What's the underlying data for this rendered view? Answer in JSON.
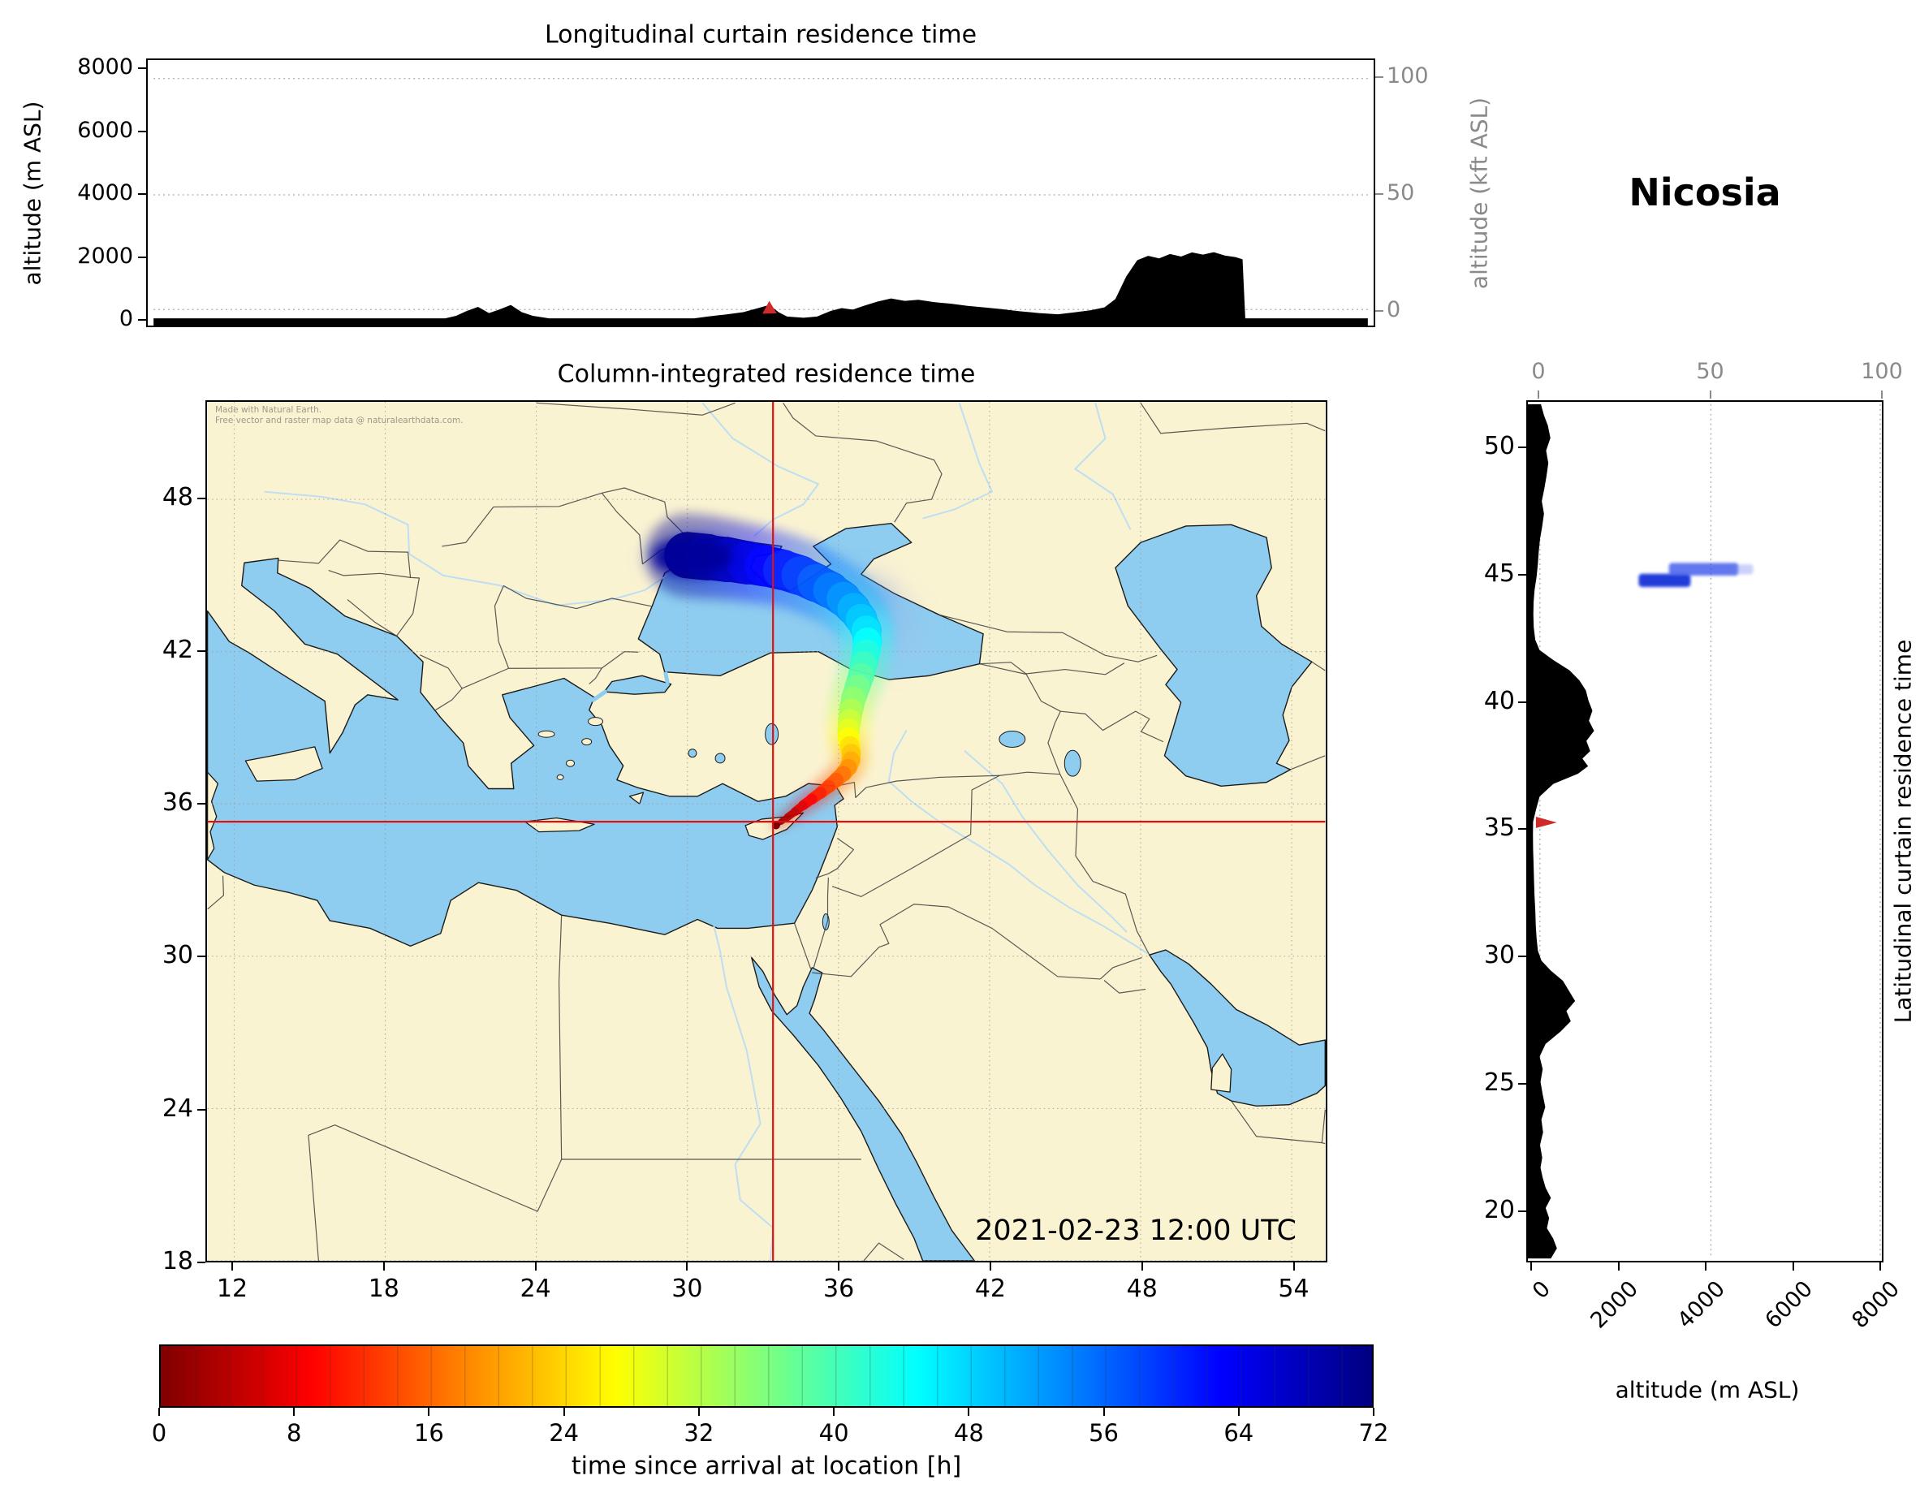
{
  "title": "Nicosia",
  "top_panel": {
    "title": "Longitudinal curtain residence time",
    "ylabel_left": "altitude (m ASL)",
    "ylabel_right": "altitude (kft ASL)",
    "yticks_left": [
      0,
      2000,
      4000,
      6000,
      8000
    ],
    "yticks_right": [
      0,
      50,
      100
    ],
    "ylim_m": [
      0,
      8000
    ],
    "ylim_kft": [
      0,
      100
    ]
  },
  "map_panel": {
    "title": "Column-integrated residence time",
    "datetime_label": "2021-02-23 12:00 UTC",
    "attribution_line1": "Made with Natural Earth.",
    "attribution_line2": "Free vector and raster map data @ naturalearthdata.com.",
    "xticks": [
      12,
      18,
      24,
      30,
      36,
      42,
      48,
      54
    ],
    "yticks": [
      18,
      24,
      30,
      36,
      42,
      48
    ],
    "lon_range": [
      10.94,
      55.33
    ],
    "lat_range": [
      18,
      51.84
    ],
    "crosshair_lon": 33.4,
    "crosshair_lat": 35.3
  },
  "right_panel": {
    "xlabel": "altitude (m ASL)",
    "ylabel": "Latitudinal curtain residence time",
    "xticks": [
      0,
      2000,
      4000,
      6000,
      8000
    ],
    "xticks_top": [
      0,
      50,
      100
    ],
    "yticks": [
      20,
      25,
      30,
      35,
      40,
      45,
      50
    ],
    "xlim_m": [
      0,
      8000
    ]
  },
  "colorbar": {
    "label": "time since arrival at location [h]",
    "ticks": [
      0,
      8,
      16,
      24,
      32,
      40,
      48,
      56,
      64,
      72
    ],
    "range": [
      0,
      72
    ],
    "n_levels": 36,
    "stops": [
      [
        0,
        "#7f0000"
      ],
      [
        0.125,
        "#ff0000"
      ],
      [
        0.25,
        "#ff8400"
      ],
      [
        0.375,
        "#ffff00"
      ],
      [
        0.5,
        "#7dff7d"
      ],
      [
        0.625,
        "#00ffff"
      ],
      [
        0.75,
        "#0084ff"
      ],
      [
        0.875,
        "#0000ff"
      ],
      [
        1,
        "#00007f"
      ]
    ]
  },
  "colors": {
    "land": "#faf3d2",
    "ocean": "#8ecdf0",
    "coast": "#1a1a1a",
    "border": "#3c3c3c",
    "river": "#b9ddf2",
    "terrain": "#000000",
    "grid": "#999999",
    "axis_gray": "#8a8a8a",
    "crosshair": "#e01010",
    "marker": "#cf2b2b"
  },
  "chart_data": [
    {
      "type": "area",
      "name": "longitudinal_terrain_profile",
      "title": "Longitudinal curtain residence time",
      "xlim": [
        10.94,
        55.33
      ],
      "ylim": [
        0,
        8000
      ],
      "columns": [
        "lon_deg",
        "altitude_m"
      ],
      "points": [
        [
          10.94,
          0
        ],
        [
          21.6,
          0
        ],
        [
          22.0,
          80
        ],
        [
          22.4,
          240
        ],
        [
          22.8,
          370
        ],
        [
          23.2,
          170
        ],
        [
          23.6,
          290
        ],
        [
          24.0,
          430
        ],
        [
          24.4,
          200
        ],
        [
          24.8,
          80
        ],
        [
          25.4,
          0
        ],
        [
          30.7,
          0
        ],
        [
          31.2,
          60
        ],
        [
          31.8,
          120
        ],
        [
          32.5,
          200
        ],
        [
          33.0,
          320
        ],
        [
          33.45,
          430
        ],
        [
          33.8,
          190
        ],
        [
          34.1,
          60
        ],
        [
          34.7,
          20
        ],
        [
          35.2,
          60
        ],
        [
          35.7,
          240
        ],
        [
          36.1,
          330
        ],
        [
          36.5,
          280
        ],
        [
          36.9,
          400
        ],
        [
          37.4,
          540
        ],
        [
          37.9,
          640
        ],
        [
          38.4,
          560
        ],
        [
          38.9,
          600
        ],
        [
          39.5,
          520
        ],
        [
          40.1,
          470
        ],
        [
          40.7,
          400
        ],
        [
          41.3,
          350
        ],
        [
          41.9,
          300
        ],
        [
          42.6,
          230
        ],
        [
          43.3,
          170
        ],
        [
          44.0,
          130
        ],
        [
          44.6,
          190
        ],
        [
          45.2,
          260
        ],
        [
          45.7,
          350
        ],
        [
          46.1,
          620
        ],
        [
          46.5,
          1350
        ],
        [
          46.9,
          1870
        ],
        [
          47.3,
          2010
        ],
        [
          47.7,
          1930
        ],
        [
          48.1,
          2070
        ],
        [
          48.5,
          1990
        ],
        [
          48.9,
          2120
        ],
        [
          49.3,
          2050
        ],
        [
          49.7,
          2130
        ],
        [
          50.1,
          2020
        ],
        [
          50.5,
          1970
        ],
        [
          50.75,
          1900
        ],
        [
          50.85,
          0
        ],
        [
          55.33,
          0
        ]
      ]
    },
    {
      "type": "scatter",
      "name": "trajectory_column_residence_time",
      "title": "Column-integrated residence time",
      "colorbar_label": "time since arrival at location [h]",
      "columns": [
        "time_h",
        "lon_deg",
        "lat_deg",
        "spread_deg"
      ],
      "points": [
        [
          72,
          30.0,
          45.8,
          1.5
        ],
        [
          70,
          30.8,
          45.72,
          1.45
        ],
        [
          68,
          31.6,
          45.62,
          1.4
        ],
        [
          66,
          32.4,
          45.5,
          1.35
        ],
        [
          64,
          33.1,
          45.38,
          1.3
        ],
        [
          62,
          33.8,
          45.22,
          1.28
        ],
        [
          60,
          34.5,
          45.0,
          1.25
        ],
        [
          58,
          35.1,
          44.72,
          1.2
        ],
        [
          56,
          35.7,
          44.42,
          1.15
        ],
        [
          54,
          36.2,
          44.08,
          1.1
        ],
        [
          52,
          36.6,
          43.68,
          1.05
        ],
        [
          50,
          36.9,
          43.28,
          1.0
        ],
        [
          48,
          37.1,
          42.85,
          0.95
        ],
        [
          46,
          37.15,
          42.4,
          0.9
        ],
        [
          44,
          37.1,
          41.95,
          0.88
        ],
        [
          42,
          37.0,
          41.5,
          0.85
        ],
        [
          40,
          36.9,
          41.05,
          0.82
        ],
        [
          38,
          36.75,
          40.6,
          0.8
        ],
        [
          36,
          36.6,
          40.15,
          0.78
        ],
        [
          34,
          36.5,
          39.7,
          0.75
        ],
        [
          32,
          36.45,
          39.3,
          0.72
        ],
        [
          30,
          36.4,
          38.95,
          0.7
        ],
        [
          28,
          36.4,
          38.6,
          0.68
        ],
        [
          26,
          36.45,
          38.28,
          0.65
        ],
        [
          24,
          36.5,
          38.0,
          0.62
        ],
        [
          22,
          36.5,
          37.72,
          0.58
        ],
        [
          20,
          36.4,
          37.45,
          0.55
        ],
        [
          18,
          36.2,
          37.2,
          0.5
        ],
        [
          16,
          35.92,
          36.95,
          0.46
        ],
        [
          14,
          35.62,
          36.7,
          0.42
        ],
        [
          12,
          35.3,
          36.45,
          0.38
        ],
        [
          10,
          34.95,
          36.2,
          0.34
        ],
        [
          8,
          34.6,
          35.95,
          0.3
        ],
        [
          6,
          34.28,
          35.7,
          0.26
        ],
        [
          4,
          33.98,
          35.48,
          0.22
        ],
        [
          2,
          33.72,
          35.3,
          0.18
        ],
        [
          0,
          33.52,
          35.16,
          0.14
        ]
      ]
    },
    {
      "type": "area",
      "name": "latitudinal_terrain_profile",
      "xlim": [
        0,
        8000
      ],
      "columns": [
        "lat_deg",
        "altitude_m"
      ],
      "points": [
        [
          18.0,
          420
        ],
        [
          18.4,
          560
        ],
        [
          18.8,
          470
        ],
        [
          19.2,
          330
        ],
        [
          19.6,
          380
        ],
        [
          20.0,
          300
        ],
        [
          20.4,
          420
        ],
        [
          20.8,
          300
        ],
        [
          21.2,
          230
        ],
        [
          21.6,
          180
        ],
        [
          22.0,
          220
        ],
        [
          22.5,
          170
        ],
        [
          23.0,
          240
        ],
        [
          23.5,
          200
        ],
        [
          24.0,
          290
        ],
        [
          24.5,
          230
        ],
        [
          25.0,
          180
        ],
        [
          25.5,
          230
        ],
        [
          26.0,
          160
        ],
        [
          26.5,
          300
        ],
        [
          27.0,
          650
        ],
        [
          27.4,
          880
        ],
        [
          27.8,
          780
        ],
        [
          28.2,
          980
        ],
        [
          28.6,
          840
        ],
        [
          29.0,
          700
        ],
        [
          29.4,
          420
        ],
        [
          29.8,
          200
        ],
        [
          30.2,
          120
        ],
        [
          30.7,
          90
        ],
        [
          31.2,
          70
        ],
        [
          31.8,
          60
        ],
        [
          32.4,
          40
        ],
        [
          33.0,
          30
        ],
        [
          33.6,
          20
        ],
        [
          34.2,
          10
        ],
        [
          34.8,
          5
        ],
        [
          35.3,
          10
        ],
        [
          35.8,
          80
        ],
        [
          36.3,
          160
        ],
        [
          36.8,
          480
        ],
        [
          37.2,
          1050
        ],
        [
          37.5,
          1280
        ],
        [
          37.8,
          1150
        ],
        [
          38.1,
          1330
        ],
        [
          38.5,
          1240
        ],
        [
          38.9,
          1420
        ],
        [
          39.3,
          1300
        ],
        [
          39.7,
          1380
        ],
        [
          40.1,
          1290
        ],
        [
          40.5,
          1230
        ],
        [
          40.9,
          1080
        ],
        [
          41.3,
          850
        ],
        [
          41.7,
          480
        ],
        [
          42.1,
          160
        ],
        [
          42.5,
          60
        ],
        [
          43.0,
          25
        ],
        [
          43.5,
          15
        ],
        [
          44.0,
          20
        ],
        [
          44.5,
          45
        ],
        [
          45.0,
          90
        ],
        [
          45.5,
          120
        ],
        [
          46.0,
          140
        ],
        [
          46.5,
          170
        ],
        [
          47.0,
          220
        ],
        [
          47.5,
          260
        ],
        [
          48.0,
          210
        ],
        [
          48.5,
          270
        ],
        [
          49.0,
          320
        ],
        [
          49.5,
          360
        ],
        [
          50.0,
          310
        ],
        [
          50.5,
          410
        ],
        [
          51.0,
          350
        ],
        [
          51.4,
          260
        ],
        [
          51.84,
          190
        ]
      ]
    },
    {
      "type": "heatmap",
      "name": "latitudinal_curtain_plume",
      "blobs": [
        {
          "lat_min": 44.6,
          "lat_max": 45.12,
          "alt_min": 2450,
          "alt_max": 3650,
          "color": "#1830d8",
          "opacity": 0.95
        },
        {
          "lat_min": 45.05,
          "lat_max": 45.55,
          "alt_min": 3150,
          "alt_max": 4750,
          "color": "#3a55ea",
          "opacity": 0.8
        },
        {
          "lat_min": 45.1,
          "lat_max": 45.5,
          "alt_min": 4600,
          "alt_max": 5100,
          "color": "#6a80f0",
          "opacity": 0.35
        }
      ]
    },
    {
      "type": "marker",
      "name": "station_marker",
      "label": "Nicosia",
      "lon": 33.4,
      "lat": 35.3
    }
  ]
}
